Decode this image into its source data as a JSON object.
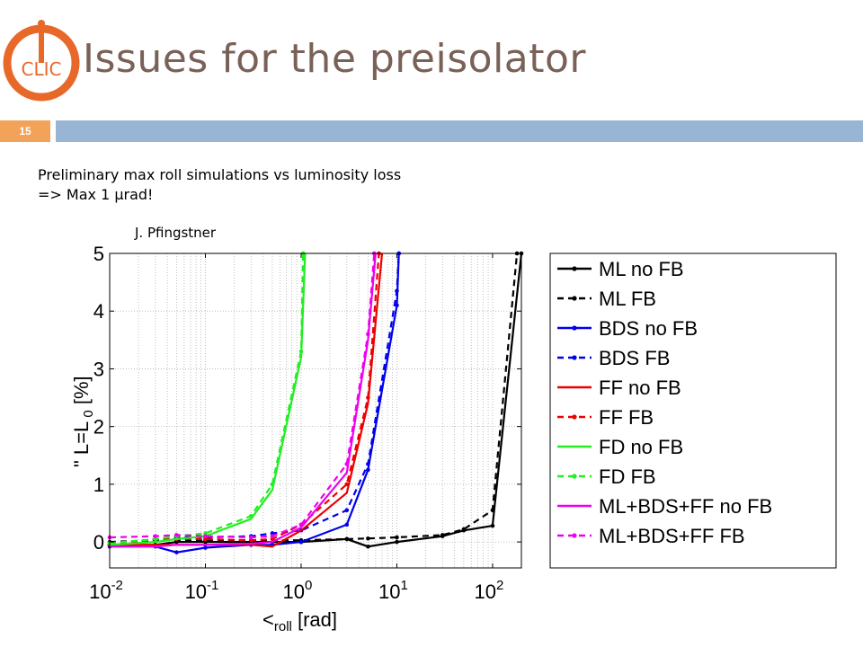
{
  "slide": {
    "title": "Issues for the preisolator",
    "number": "15",
    "subtitle_lines": [
      "Preliminary max roll simulations vs luminosity loss",
      "=> Max 1 µrad!"
    ],
    "credit": "J. Pfingstner",
    "colors": {
      "title": "#7a6158",
      "header_bar": "#98b6d3",
      "number_box": "#f3a25a",
      "logo": "#e8682a"
    },
    "logo_text": "CLIC"
  },
  "chart_data": {
    "type": "line",
    "xscale": "log",
    "xlim": [
      0.01,
      200
    ],
    "ylim": [
      -0.45,
      5
    ],
    "xticks": [
      {
        "value": 0.01,
        "base": "10",
        "exp": "-2"
      },
      {
        "value": 0.1,
        "base": "10",
        "exp": "-1"
      },
      {
        "value": 1,
        "base": "10",
        "exp": "0"
      },
      {
        "value": 10,
        "base": "10",
        "exp": "1"
      },
      {
        "value": 100,
        "base": "10",
        "exp": "2"
      }
    ],
    "yticks": [
      0,
      1,
      2,
      3,
      4,
      5
    ],
    "xlabel": {
      "main": "<",
      "sub": "roll",
      "unit": "[rad]"
    },
    "ylabel": {
      "prefix": "\"  L=L",
      "sub": "0",
      "unit": "[%]"
    },
    "grid": true,
    "legend_position": "right",
    "series": [
      {
        "name": "ML no FB",
        "color": "#000000",
        "dash": "solid",
        "marker": true,
        "x": [
          0.01,
          0.03,
          0.05,
          0.1,
          0.3,
          1,
          3,
          5,
          10,
          30,
          50,
          100,
          200
        ],
        "y": [
          -0.05,
          -0.05,
          0.0,
          0.0,
          0.0,
          0.0,
          0.05,
          -0.08,
          0.0,
          0.1,
          0.2,
          0.28,
          5.0
        ]
      },
      {
        "name": "ML FB",
        "color": "#000000",
        "dash": "dash",
        "marker": true,
        "x": [
          0.01,
          0.03,
          0.05,
          0.1,
          0.3,
          1,
          3,
          5,
          10,
          30,
          50,
          100,
          180
        ],
        "y": [
          0.0,
          0.03,
          0.03,
          0.03,
          0.03,
          0.03,
          0.05,
          0.06,
          0.08,
          0.12,
          0.22,
          0.55,
          5.0
        ]
      },
      {
        "name": "BDS no FB",
        "color": "#0000ee",
        "dash": "solid",
        "marker": true,
        "x": [
          0.01,
          0.03,
          0.05,
          0.1,
          0.3,
          0.5,
          1,
          3,
          5,
          10,
          10.5
        ],
        "y": [
          -0.08,
          -0.08,
          -0.18,
          -0.1,
          -0.05,
          -0.05,
          0.0,
          0.3,
          1.25,
          4.1,
          5.0
        ]
      },
      {
        "name": "BDS FB",
        "color": "#0000ee",
        "dash": "dash",
        "marker": true,
        "x": [
          0.01,
          0.03,
          0.05,
          0.1,
          0.3,
          0.5,
          1,
          3,
          5,
          10,
          10.5
        ],
        "y": [
          -0.05,
          0.05,
          0.08,
          0.08,
          0.1,
          0.15,
          0.2,
          0.55,
          1.35,
          4.35,
          5.0
        ]
      },
      {
        "name": "FF no FB",
        "color": "#ee0000",
        "dash": "solid",
        "marker": false,
        "x": [
          0.01,
          0.03,
          0.05,
          0.1,
          0.3,
          0.5,
          1,
          3,
          5,
          7
        ],
        "y": [
          -0.05,
          -0.05,
          -0.05,
          -0.05,
          -0.05,
          -0.08,
          0.2,
          0.85,
          2.4,
          5.0
        ]
      },
      {
        "name": "FF FB",
        "color": "#ee0000",
        "dash": "dash",
        "marker": true,
        "x": [
          0.01,
          0.03,
          0.05,
          0.1,
          0.3,
          0.5,
          1,
          3,
          5,
          6.5
        ],
        "y": [
          -0.05,
          0.05,
          0.05,
          0.05,
          0.03,
          0.05,
          0.3,
          1.0,
          2.5,
          5.0
        ]
      },
      {
        "name": "FD no FB",
        "color": "#22ee22",
        "dash": "solid",
        "marker": false,
        "x": [
          0.01,
          0.03,
          0.05,
          0.1,
          0.3,
          0.5,
          1,
          1.1
        ],
        "y": [
          -0.05,
          0.0,
          0.05,
          0.1,
          0.4,
          0.9,
          3.2,
          5.0
        ]
      },
      {
        "name": "FD FB",
        "color": "#22ee22",
        "dash": "dash",
        "marker": true,
        "x": [
          0.01,
          0.03,
          0.05,
          0.1,
          0.3,
          0.5,
          1,
          1.05
        ],
        "y": [
          -0.02,
          0.05,
          0.1,
          0.15,
          0.45,
          1.0,
          3.3,
          5.0
        ]
      },
      {
        "name": "ML+BDS+FF no FB",
        "color": "#ee00ee",
        "dash": "solid",
        "marker": false,
        "x": [
          0.01,
          0.03,
          0.05,
          0.1,
          0.3,
          0.5,
          1,
          3,
          5,
          6
        ],
        "y": [
          -0.08,
          -0.08,
          -0.05,
          -0.05,
          -0.03,
          0.0,
          0.25,
          1.2,
          3.5,
          5.0
        ]
      },
      {
        "name": "ML+BDS+FF FB",
        "color": "#ee00ee",
        "dash": "dash",
        "marker": true,
        "x": [
          0.01,
          0.03,
          0.05,
          0.1,
          0.3,
          0.5,
          1,
          3,
          5,
          5.8
        ],
        "y": [
          0.08,
          0.1,
          0.12,
          0.1,
          0.08,
          0.1,
          0.3,
          1.35,
          3.6,
          5.0
        ]
      }
    ]
  }
}
